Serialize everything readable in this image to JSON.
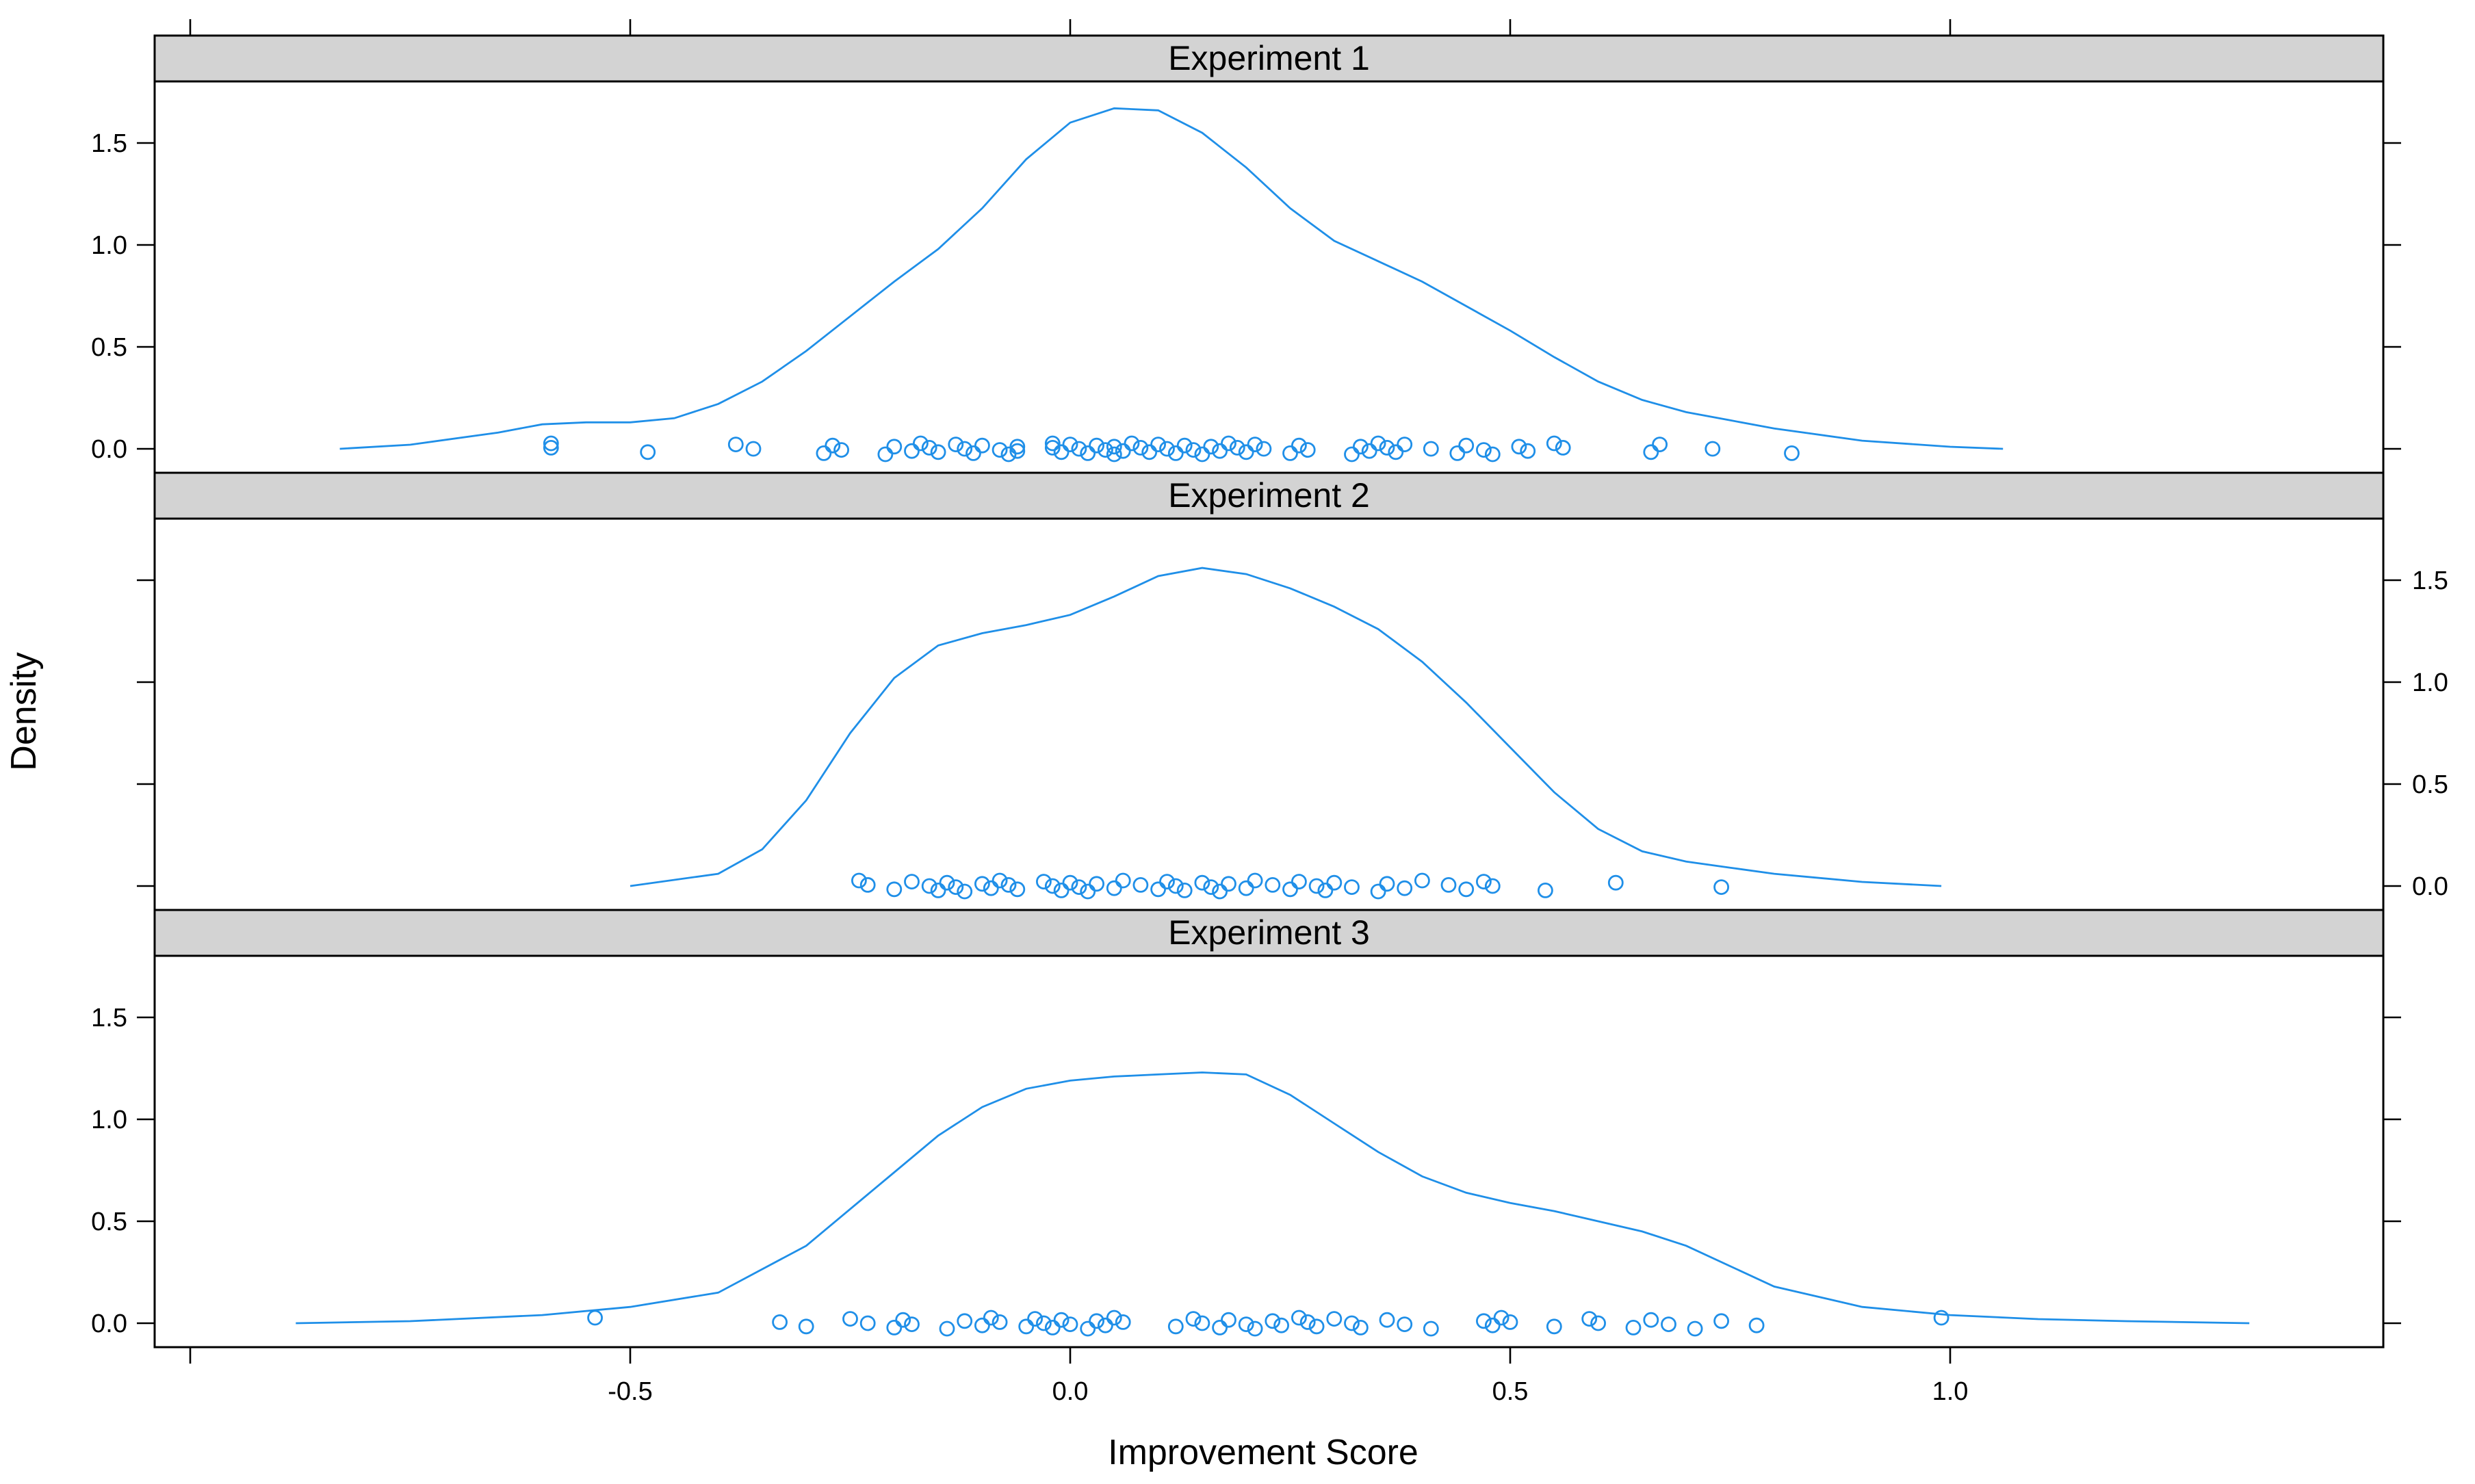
{
  "colors": {
    "series": "#1f8fe8",
    "strip": "#d3d3d3"
  },
  "chart_data": {
    "type": "line",
    "xlabel": "Improvement Score",
    "ylabel": "Density",
    "xlim": [
      -1.0,
      1.55
    ],
    "ylim": [
      -0.1,
      1.8
    ],
    "x_ticks": [
      -0.5,
      0.0,
      0.5,
      1.0
    ],
    "x_tick_labels": [
      "-0.5",
      "0.0",
      "0.5",
      "1.0"
    ],
    "y_ticks": [
      0.0,
      0.5,
      1.0,
      1.5
    ],
    "y_tick_labels": [
      "0.0",
      "0.5",
      "1.0",
      "1.5"
    ],
    "panels": [
      {
        "strip": "Experiment 1",
        "y_axis_side": "left",
        "density": {
          "x": [
            -0.83,
            -0.75,
            -0.65,
            -0.6,
            -0.55,
            -0.5,
            -0.45,
            -0.4,
            -0.35,
            -0.3,
            -0.25,
            -0.2,
            -0.15,
            -0.1,
            -0.05,
            0.0,
            0.05,
            0.1,
            0.15,
            0.2,
            0.25,
            0.3,
            0.35,
            0.4,
            0.45,
            0.5,
            0.55,
            0.6,
            0.65,
            0.7,
            0.75,
            0.8,
            0.9,
            1.0,
            1.06
          ],
          "y": [
            0.0,
            0.02,
            0.08,
            0.12,
            0.13,
            0.13,
            0.15,
            0.22,
            0.33,
            0.48,
            0.65,
            0.82,
            0.98,
            1.18,
            1.42,
            1.6,
            1.67,
            1.66,
            1.55,
            1.38,
            1.18,
            1.02,
            0.92,
            0.82,
            0.7,
            0.58,
            0.45,
            0.33,
            0.24,
            0.18,
            0.14,
            0.1,
            0.04,
            0.01,
            0.0
          ]
        },
        "points": [
          -0.59,
          -0.59,
          -0.48,
          -0.38,
          -0.36,
          -0.28,
          -0.27,
          -0.26,
          -0.21,
          -0.2,
          -0.18,
          -0.17,
          -0.16,
          -0.15,
          -0.13,
          -0.12,
          -0.11,
          -0.1,
          -0.08,
          -0.07,
          -0.06,
          -0.06,
          -0.02,
          -0.02,
          -0.01,
          0.0,
          0.01,
          0.02,
          0.03,
          0.04,
          0.05,
          0.05,
          0.06,
          0.07,
          0.08,
          0.09,
          0.1,
          0.11,
          0.12,
          0.13,
          0.14,
          0.15,
          0.16,
          0.17,
          0.18,
          0.19,
          0.2,
          0.21,
          0.22,
          0.25,
          0.26,
          0.27,
          0.32,
          0.33,
          0.34,
          0.35,
          0.36,
          0.37,
          0.38,
          0.41,
          0.44,
          0.45,
          0.47,
          0.48,
          0.51,
          0.52,
          0.55,
          0.56,
          0.66,
          0.67,
          0.73,
          0.82
        ]
      },
      {
        "strip": "Experiment 2",
        "y_axis_side": "right",
        "density": {
          "x": [
            -0.5,
            -0.4,
            -0.35,
            -0.3,
            -0.25,
            -0.2,
            -0.15,
            -0.1,
            -0.05,
            0.0,
            0.05,
            0.1,
            0.15,
            0.2,
            0.25,
            0.3,
            0.35,
            0.4,
            0.45,
            0.5,
            0.55,
            0.6,
            0.65,
            0.7,
            0.75,
            0.8,
            0.9,
            0.99
          ],
          "y": [
            0.0,
            0.06,
            0.18,
            0.42,
            0.75,
            1.02,
            1.18,
            1.24,
            1.28,
            1.33,
            1.42,
            1.52,
            1.56,
            1.53,
            1.46,
            1.37,
            1.26,
            1.1,
            0.9,
            0.68,
            0.46,
            0.28,
            0.17,
            0.12,
            0.09,
            0.06,
            0.02,
            0.0
          ]
        },
        "points": [
          -0.24,
          -0.23,
          -0.2,
          -0.18,
          -0.16,
          -0.15,
          -0.14,
          -0.13,
          -0.12,
          -0.1,
          -0.09,
          -0.08,
          -0.07,
          -0.06,
          -0.03,
          -0.02,
          -0.01,
          0.0,
          0.01,
          0.02,
          0.03,
          0.05,
          0.06,
          0.08,
          0.1,
          0.11,
          0.12,
          0.13,
          0.15,
          0.16,
          0.17,
          0.18,
          0.2,
          0.21,
          0.23,
          0.25,
          0.26,
          0.28,
          0.29,
          0.3,
          0.32,
          0.35,
          0.36,
          0.38,
          0.4,
          0.43,
          0.45,
          0.47,
          0.48,
          0.54,
          0.62,
          0.74
        ]
      },
      {
        "strip": "Experiment 3",
        "y_axis_side": "left",
        "density": {
          "x": [
            -0.88,
            -0.75,
            -0.6,
            -0.5,
            -0.4,
            -0.3,
            -0.2,
            -0.15,
            -0.1,
            -0.05,
            0.0,
            0.05,
            0.1,
            0.15,
            0.2,
            0.25,
            0.3,
            0.35,
            0.4,
            0.45,
            0.5,
            0.55,
            0.6,
            0.65,
            0.7,
            0.75,
            0.8,
            0.9,
            1.0,
            1.1,
            1.2,
            1.34
          ],
          "y": [
            0.0,
            0.01,
            0.04,
            0.08,
            0.15,
            0.38,
            0.74,
            0.92,
            1.06,
            1.15,
            1.19,
            1.21,
            1.22,
            1.23,
            1.22,
            1.12,
            0.98,
            0.84,
            0.72,
            0.64,
            0.59,
            0.55,
            0.5,
            0.45,
            0.38,
            0.28,
            0.18,
            0.08,
            0.04,
            0.02,
            0.01,
            0.0
          ]
        },
        "points": [
          -0.54,
          -0.33,
          -0.3,
          -0.25,
          -0.23,
          -0.2,
          -0.19,
          -0.18,
          -0.14,
          -0.12,
          -0.1,
          -0.09,
          -0.08,
          -0.05,
          -0.04,
          -0.03,
          -0.02,
          -0.01,
          0.0,
          0.02,
          0.03,
          0.04,
          0.05,
          0.06,
          0.12,
          0.14,
          0.15,
          0.17,
          0.18,
          0.2,
          0.21,
          0.23,
          0.24,
          0.26,
          0.27,
          0.28,
          0.3,
          0.32,
          0.33,
          0.36,
          0.38,
          0.41,
          0.47,
          0.48,
          0.49,
          0.5,
          0.55,
          0.59,
          0.6,
          0.64,
          0.66,
          0.68,
          0.71,
          0.74,
          0.78,
          0.99
        ]
      }
    ]
  }
}
